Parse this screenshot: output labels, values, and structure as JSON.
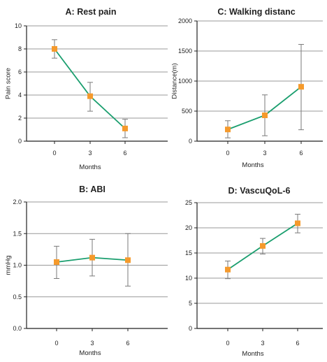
{
  "colors": {
    "line": "#1a9e6e",
    "marker": "#f59a2c",
    "errorbar": "#7a7a7a",
    "grid": "#999999",
    "axis": "#222222"
  },
  "chart_data": [
    {
      "type": "line",
      "title": "A: Rest pain",
      "xlabel": "Months",
      "ylabel": "Pain score",
      "categories": [
        "0",
        "3",
        "6"
      ],
      "values": [
        8.0,
        3.9,
        1.1
      ],
      "error_low": [
        7.2,
        2.6,
        0.3
      ],
      "error_high": [
        8.8,
        5.1,
        1.9
      ],
      "ylim": [
        0,
        10
      ],
      "yticks": [
        0,
        2,
        4,
        6,
        8,
        10
      ],
      "ytick_labels": [
        "0",
        "2",
        "4",
        "6",
        "8",
        "10"
      ],
      "grid": "horizontal"
    },
    {
      "type": "line",
      "title": "C: Walking distanc",
      "xlabel": "Months",
      "ylabel": "Distance(m)",
      "categories": [
        "0",
        "3",
        "6"
      ],
      "values": [
        195,
        430,
        905
      ],
      "error_low": [
        55,
        90,
        190
      ],
      "error_high": [
        340,
        770,
        1610
      ],
      "ylim": [
        0,
        2000
      ],
      "yticks": [
        0,
        500,
        1000,
        1500,
        2000
      ],
      "ytick_labels": [
        "0",
        "500",
        "1000",
        "1500",
        "2000"
      ],
      "grid": "horizontal"
    },
    {
      "type": "line",
      "title": "B: ABI",
      "xlabel": "Months",
      "ylabel": "mmHg",
      "categories": [
        "0",
        "3",
        "6"
      ],
      "values": [
        1.05,
        1.12,
        1.08
      ],
      "error_low": [
        0.79,
        0.83,
        0.67
      ],
      "error_high": [
        1.3,
        1.41,
        1.5
      ],
      "ylim": [
        0,
        2.0
      ],
      "yticks": [
        0,
        0.5,
        1.0,
        1.5,
        2.0
      ],
      "ytick_labels": [
        "0.0",
        "0.5",
        "1.0",
        "1.5",
        "2.0"
      ],
      "grid": "horizontal"
    },
    {
      "type": "line",
      "title": "D: VascuQoL-6",
      "xlabel": "Months",
      "ylabel": "",
      "categories": [
        "0",
        "3",
        "6"
      ],
      "values": [
        11.7,
        16.4,
        20.9
      ],
      "error_low": [
        9.9,
        14.8,
        19.0
      ],
      "error_high": [
        13.4,
        17.9,
        22.7
      ],
      "ylim": [
        0,
        25
      ],
      "yticks": [
        0,
        5,
        10,
        15,
        20,
        25
      ],
      "ytick_labels": [
        "0",
        "5",
        "10",
        "15",
        "20",
        "25"
      ],
      "grid": "horizontal"
    }
  ]
}
